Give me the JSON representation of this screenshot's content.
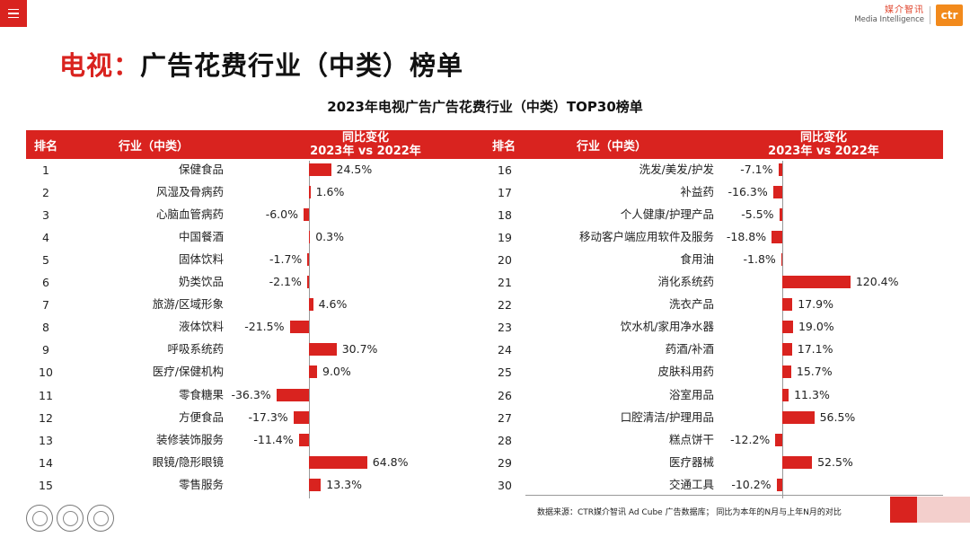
{
  "brand": {
    "cn": "媒介智讯",
    "en": "Media Intelligence",
    "logo": "ctr"
  },
  "page_title": {
    "accent": "电视：",
    "rest": "广告花费行业（中类）榜单"
  },
  "source_note": "数据来源：CTR媒介智讯 Ad Cube 广告数据库；  同比为本年的N月与上年N月的对比",
  "colors": {
    "accent": "#d9231f",
    "header_text": "#ffffff",
    "logo": "#f28a1c"
  },
  "chart_data": {
    "type": "bar",
    "title": "2023年电视广告广告花费行业（中类）TOP30榜单",
    "columns": {
      "rank": "排名",
      "industry": "行业（中类）",
      "change_line1": "同比变化",
      "change_line2": "2023年 vs 2022年"
    },
    "unit": "%",
    "rows": [
      {
        "rank": "1",
        "industry": "保健食品",
        "value": 24.5,
        "label": "24.5%"
      },
      {
        "rank": "2",
        "industry": "风湿及骨病药",
        "value": 1.6,
        "label": "1.6%"
      },
      {
        "rank": "3",
        "industry": "心脑血管病药",
        "value": -6.0,
        "label": "-6.0%"
      },
      {
        "rank": "4",
        "industry": "中国餐酒",
        "value": 0.3,
        "label": "0.3%"
      },
      {
        "rank": "5",
        "industry": "固体饮料",
        "value": -1.7,
        "label": "-1.7%"
      },
      {
        "rank": "6",
        "industry": "奶类饮品",
        "value": -2.1,
        "label": "-2.1%"
      },
      {
        "rank": "7",
        "industry": "旅游/区域形象",
        "value": 4.6,
        "label": "4.6%"
      },
      {
        "rank": "8",
        "industry": "液体饮料",
        "value": -21.5,
        "label": "-21.5%"
      },
      {
        "rank": "9",
        "industry": "呼吸系统药",
        "value": 30.7,
        "label": "30.7%"
      },
      {
        "rank": "10",
        "industry": "医疗/保健机构",
        "value": 9.0,
        "label": "9.0%"
      },
      {
        "rank": "11",
        "industry": "零食糖果",
        "value": -36.3,
        "label": "-36.3%"
      },
      {
        "rank": "12",
        "industry": "方便食品",
        "value": -17.3,
        "label": "-17.3%"
      },
      {
        "rank": "13",
        "industry": "装修装饰服务",
        "value": -11.4,
        "label": "-11.4%"
      },
      {
        "rank": "14",
        "industry": "眼镜/隐形眼镜",
        "value": 64.8,
        "label": "64.8%"
      },
      {
        "rank": "15",
        "industry": "零售服务",
        "value": 13.3,
        "label": "13.3%"
      },
      {
        "rank": "16",
        "industry": "洗发/美发/护发",
        "value": -7.1,
        "label": "-7.1%"
      },
      {
        "rank": "17",
        "industry": "补益药",
        "value": -16.3,
        "label": "-16.3%"
      },
      {
        "rank": "18",
        "industry": "个人健康/护理产品",
        "value": -5.5,
        "label": "-5.5%"
      },
      {
        "rank": "19",
        "industry": "移动客户端应用软件及服务",
        "value": -18.8,
        "label": "-18.8%"
      },
      {
        "rank": "20",
        "industry": "食用油",
        "value": -1.8,
        "label": "-1.8%"
      },
      {
        "rank": "21",
        "industry": "消化系统药",
        "value": 120.4,
        "label": "120.4%"
      },
      {
        "rank": "22",
        "industry": "洗衣产品",
        "value": 17.9,
        "label": "17.9%"
      },
      {
        "rank": "23",
        "industry": "饮水机/家用净水器",
        "value": 19.0,
        "label": "19.0%"
      },
      {
        "rank": "24",
        "industry": "药酒/补酒",
        "value": 17.1,
        "label": "17.1%"
      },
      {
        "rank": "25",
        "industry": "皮肤科用药",
        "value": 15.7,
        "label": "15.7%"
      },
      {
        "rank": "26",
        "industry": "浴室用品",
        "value": 11.3,
        "label": "11.3%"
      },
      {
        "rank": "27",
        "industry": "口腔清洁/护理用品",
        "value": 56.5,
        "label": "56.5%"
      },
      {
        "rank": "28",
        "industry": "糕点饼干",
        "value": -12.2,
        "label": "-12.2%"
      },
      {
        "rank": "29",
        "industry": "医疗器械",
        "value": 52.5,
        "label": "52.5%"
      },
      {
        "rank": "30",
        "industry": "交通工具",
        "value": -10.2,
        "label": "-10.2%"
      }
    ]
  }
}
